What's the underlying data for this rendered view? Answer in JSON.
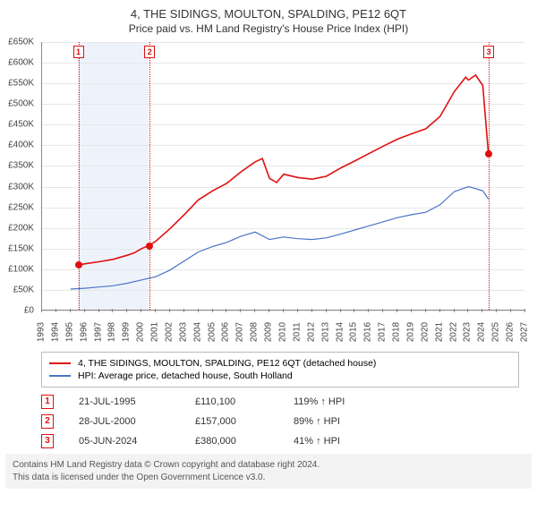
{
  "title": "4, THE SIDINGS, MOULTON, SPALDING, PE12 6QT",
  "subtitle": "Price paid vs. HM Land Registry's House Price Index (HPI)",
  "chart": {
    "type": "line",
    "background_color": "#ffffff",
    "grid_color": "#e7e7e7",
    "axis_color": "#888888",
    "text_color": "#444444",
    "x": {
      "min": 1993,
      "max": 2027,
      "ticks": [
        1993,
        1994,
        1995,
        1996,
        1997,
        1998,
        1999,
        2000,
        2001,
        2002,
        2003,
        2004,
        2005,
        2006,
        2007,
        2008,
        2009,
        2010,
        2011,
        2012,
        2013,
        2014,
        2015,
        2016,
        2017,
        2018,
        2019,
        2020,
        2021,
        2022,
        2023,
        2024,
        2025,
        2026,
        2027
      ],
      "label_fontsize": 10,
      "rotation": -90
    },
    "y": {
      "min": 0,
      "max": 650000,
      "tick_step": 50000,
      "tick_labels": [
        "£0",
        "£50K",
        "£100K",
        "£150K",
        "£200K",
        "£250K",
        "£300K",
        "£350K",
        "£400K",
        "£450K",
        "£500K",
        "£550K",
        "£600K",
        "£650K"
      ],
      "label_fontsize": 10
    },
    "band": {
      "x_from": 1995.5,
      "x_to": 2000.5,
      "color": "#eef3fb"
    },
    "series": [
      {
        "name": "subject",
        "label": "4, THE SIDINGS, MOULTON, SPALDING, PE12 6QT (detached house)",
        "color": "#e01010",
        "line_width": 1.6,
        "points": [
          [
            1995.55,
            110100
          ],
          [
            1996,
            113000
          ],
          [
            1997,
            118000
          ],
          [
            1998,
            124000
          ],
          [
            1999,
            134000
          ],
          [
            1999.5,
            140000
          ],
          [
            2000,
            150000
          ],
          [
            2000.5,
            157000
          ],
          [
            2001,
            168000
          ],
          [
            2002,
            198000
          ],
          [
            2003,
            232000
          ],
          [
            2004,
            268000
          ],
          [
            2005,
            290000
          ],
          [
            2006,
            308000
          ],
          [
            2007,
            336000
          ],
          [
            2008,
            360000
          ],
          [
            2008.5,
            368000
          ],
          [
            2009,
            320000
          ],
          [
            2009.5,
            310000
          ],
          [
            2010,
            330000
          ],
          [
            2011,
            322000
          ],
          [
            2012,
            318000
          ],
          [
            2013,
            325000
          ],
          [
            2014,
            345000
          ],
          [
            2015,
            362000
          ],
          [
            2016,
            380000
          ],
          [
            2017,
            398000
          ],
          [
            2018,
            415000
          ],
          [
            2019,
            428000
          ],
          [
            2020,
            440000
          ],
          [
            2021,
            470000
          ],
          [
            2022,
            530000
          ],
          [
            2022.8,
            565000
          ],
          [
            2023,
            558000
          ],
          [
            2023.5,
            570000
          ],
          [
            2024,
            545000
          ],
          [
            2024.4,
            380000
          ]
        ]
      },
      {
        "name": "hpi",
        "label": "HPI: Average price, detached house, South Holland",
        "color": "#4a74c9",
        "line_width": 1.2,
        "points": [
          [
            1995,
            52000
          ],
          [
            1996,
            54000
          ],
          [
            1997,
            57000
          ],
          [
            1998,
            60000
          ],
          [
            1999,
            66000
          ],
          [
            2000,
            74000
          ],
          [
            2001,
            82000
          ],
          [
            2002,
            98000
          ],
          [
            2003,
            120000
          ],
          [
            2004,
            142000
          ],
          [
            2005,
            155000
          ],
          [
            2006,
            165000
          ],
          [
            2007,
            180000
          ],
          [
            2008,
            190000
          ],
          [
            2009,
            172000
          ],
          [
            2010,
            178000
          ],
          [
            2011,
            174000
          ],
          [
            2012,
            172000
          ],
          [
            2013,
            176000
          ],
          [
            2014,
            185000
          ],
          [
            2015,
            195000
          ],
          [
            2016,
            205000
          ],
          [
            2017,
            215000
          ],
          [
            2018,
            225000
          ],
          [
            2019,
            232000
          ],
          [
            2020,
            238000
          ],
          [
            2021,
            256000
          ],
          [
            2022,
            288000
          ],
          [
            2023,
            300000
          ],
          [
            2024,
            290000
          ],
          [
            2024.4,
            270000
          ]
        ]
      }
    ],
    "markers": [
      {
        "n": "1",
        "x": 1995.55,
        "y": 110100,
        "line_color": "#e01010",
        "box_top": true
      },
      {
        "n": "2",
        "x": 2000.57,
        "y": 157000,
        "line_color": "#e01010",
        "box_top": true
      },
      {
        "n": "3",
        "x": 2024.43,
        "y": 380000,
        "line_color": "#e01010",
        "box_top": true
      }
    ],
    "marker_style": {
      "line_dash": "dotted",
      "box_border": "#e01010",
      "box_text_color": "#e01010",
      "point_fill": "#e01010",
      "point_radius": 4
    }
  },
  "legend": [
    {
      "color": "#e01010",
      "label": "4, THE SIDINGS, MOULTON, SPALDING, PE12 6QT (detached house)"
    },
    {
      "color": "#4a74c9",
      "label": "HPI: Average price, detached house, South Holland"
    }
  ],
  "sales": [
    {
      "n": "1",
      "date": "21-JUL-1995",
      "price": "£110,100",
      "pct": "119% ↑ HPI"
    },
    {
      "n": "2",
      "date": "28-JUL-2000",
      "price": "£157,000",
      "pct": "89% ↑ HPI"
    },
    {
      "n": "3",
      "date": "05-JUN-2024",
      "price": "£380,000",
      "pct": "41% ↑ HPI"
    }
  ],
  "sale_style": {
    "box_border": "#e01010",
    "box_text_color": "#e01010"
  },
  "footer_line1": "Contains HM Land Registry data © Crown copyright and database right 2024.",
  "footer_line2": "This data is licensed under the Open Government Licence v3.0."
}
